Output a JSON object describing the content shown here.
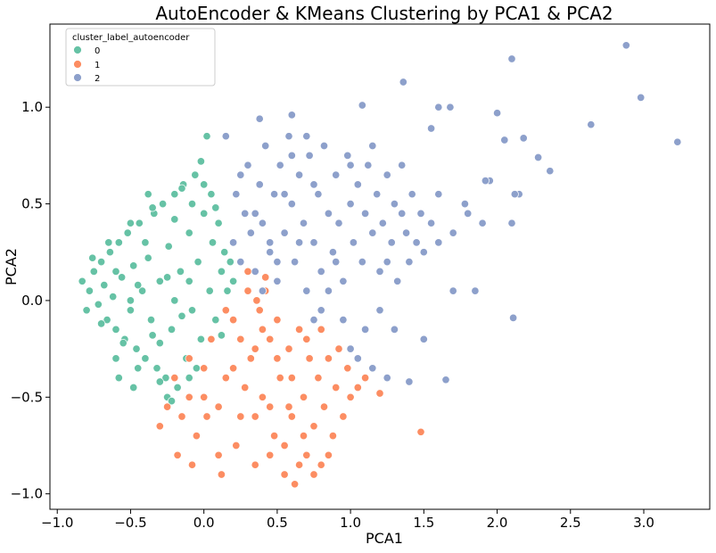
{
  "chart_data": {
    "type": "scatter",
    "title": "AutoEncoder & KMeans Clustering by PCA1 & PCA2",
    "xlabel": "PCA1",
    "ylabel": "PCA2",
    "xlim": [
      -1.05,
      3.45
    ],
    "ylim": [
      -1.08,
      1.43
    ],
    "xticks": [
      -1.0,
      -0.5,
      0.0,
      0.5,
      1.0,
      1.5,
      2.0,
      2.5,
      3.0
    ],
    "xtick_labels": [
      "−1.0",
      "−0.5",
      "0.0",
      "0.5",
      "1.0",
      "1.5",
      "2.0",
      "2.5",
      "3.0"
    ],
    "yticks": [
      -1.0,
      -0.5,
      0.0,
      0.5,
      1.0
    ],
    "ytick_labels": [
      "−1.0",
      "−0.5",
      "0.0",
      "0.5",
      "1.0"
    ],
    "grid": false,
    "legend": {
      "title": "cluster_label_autoencoder",
      "placement": "top-left",
      "entries": [
        "0",
        "1",
        "2"
      ]
    },
    "series": [
      {
        "name": "0",
        "color": "#66c2a5",
        "points": [
          [
            -0.83,
            0.1
          ],
          [
            -0.78,
            0.05
          ],
          [
            -0.75,
            0.15
          ],
          [
            -0.72,
            -0.02
          ],
          [
            -0.7,
            0.2
          ],
          [
            -0.68,
            0.08
          ],
          [
            -0.66,
            -0.1
          ],
          [
            -0.64,
            0.25
          ],
          [
            -0.62,
            0.02
          ],
          [
            -0.6,
            -0.15
          ],
          [
            -0.58,
            0.3
          ],
          [
            -0.56,
            0.12
          ],
          [
            -0.54,
            -0.2
          ],
          [
            -0.52,
            0.35
          ],
          [
            -0.5,
            -0.05
          ],
          [
            -0.48,
            0.18
          ],
          [
            -0.46,
            -0.25
          ],
          [
            -0.44,
            0.4
          ],
          [
            -0.42,
            0.05
          ],
          [
            -0.4,
            -0.3
          ],
          [
            -0.38,
            0.22
          ],
          [
            -0.36,
            -0.1
          ],
          [
            -0.34,
            0.45
          ],
          [
            -0.32,
            -0.35
          ],
          [
            -0.3,
            0.1
          ],
          [
            -0.28,
            0.5
          ],
          [
            -0.26,
            -0.4
          ],
          [
            -0.24,
            0.28
          ],
          [
            -0.22,
            -0.15
          ],
          [
            -0.2,
            0.55
          ],
          [
            -0.18,
            -0.45
          ],
          [
            -0.16,
            0.15
          ],
          [
            -0.14,
            0.6
          ],
          [
            -0.12,
            -0.3
          ],
          [
            -0.1,
            0.35
          ],
          [
            -0.08,
            -0.05
          ],
          [
            -0.06,
            0.65
          ],
          [
            -0.04,
            0.2
          ],
          [
            -0.02,
            -0.2
          ],
          [
            0.0,
            0.45
          ],
          [
            0.02,
            0.85
          ],
          [
            0.04,
            0.05
          ],
          [
            0.06,
            0.3
          ],
          [
            0.08,
            -0.1
          ],
          [
            0.1,
            0.4
          ],
          [
            0.12,
            0.15
          ],
          [
            0.14,
            0.25
          ],
          [
            0.16,
            0.05
          ],
          [
            0.18,
            0.2
          ],
          [
            0.2,
            0.1
          ],
          [
            -0.6,
            -0.3
          ],
          [
            -0.5,
            0.4
          ],
          [
            -0.45,
            -0.35
          ],
          [
            -0.35,
            0.48
          ],
          [
            -0.25,
            -0.5
          ],
          [
            -0.15,
            0.58
          ],
          [
            -0.05,
            -0.35
          ],
          [
            0.05,
            0.55
          ],
          [
            -0.65,
            0.3
          ],
          [
            -0.55,
            -0.22
          ],
          [
            -0.3,
            -0.42
          ],
          [
            -0.2,
            0.42
          ],
          [
            -0.1,
            -0.4
          ],
          [
            0.0,
            0.6
          ],
          [
            -0.7,
            -0.12
          ],
          [
            -0.4,
            0.3
          ],
          [
            -0.3,
            -0.22
          ],
          [
            -0.2,
            0.0
          ],
          [
            -0.1,
            0.1
          ],
          [
            -0.5,
            0.0
          ],
          [
            -0.6,
            0.15
          ],
          [
            -0.45,
            0.08
          ],
          [
            -0.35,
            -0.18
          ],
          [
            -0.25,
            0.12
          ],
          [
            -0.15,
            -0.08
          ],
          [
            -0.8,
            -0.05
          ],
          [
            -0.76,
            0.22
          ],
          [
            -0.58,
            -0.4
          ],
          [
            -0.48,
            -0.45
          ],
          [
            -0.22,
            -0.52
          ],
          [
            -0.02,
            0.72
          ],
          [
            0.08,
            0.48
          ],
          [
            0.12,
            -0.18
          ],
          [
            -0.08,
            0.5
          ],
          [
            -0.38,
            0.55
          ]
        ]
      },
      {
        "name": "1",
        "color": "#fc8d62",
        "points": [
          [
            -0.2,
            -0.4
          ],
          [
            -0.15,
            -0.6
          ],
          [
            -0.1,
            -0.3
          ],
          [
            -0.05,
            -0.7
          ],
          [
            0.0,
            -0.5
          ],
          [
            0.05,
            -0.2
          ],
          [
            0.1,
            -0.8
          ],
          [
            0.15,
            -0.4
          ],
          [
            0.2,
            -0.1
          ],
          [
            0.25,
            -0.6
          ],
          [
            0.3,
            0.15
          ],
          [
            0.32,
            -0.3
          ],
          [
            0.35,
            -0.85
          ],
          [
            0.38,
            -0.05
          ],
          [
            0.4,
            -0.5
          ],
          [
            0.42,
            0.05
          ],
          [
            0.45,
            -0.2
          ],
          [
            0.48,
            -0.7
          ],
          [
            0.5,
            -0.1
          ],
          [
            0.52,
            -0.4
          ],
          [
            0.55,
            -0.9
          ],
          [
            0.58,
            -0.25
          ],
          [
            0.6,
            -0.6
          ],
          [
            0.62,
            -0.95
          ],
          [
            0.65,
            -0.15
          ],
          [
            0.68,
            -0.5
          ],
          [
            0.7,
            -0.8
          ],
          [
            0.72,
            -0.3
          ],
          [
            0.75,
            -0.65
          ],
          [
            0.78,
            -0.4
          ],
          [
            0.8,
            -0.85
          ],
          [
            0.82,
            -0.55
          ],
          [
            0.85,
            -0.3
          ],
          [
            0.88,
            -0.7
          ],
          [
            0.9,
            -0.45
          ],
          [
            0.95,
            -0.6
          ],
          [
            1.0,
            -0.5
          ],
          [
            1.05,
            -0.45
          ],
          [
            1.1,
            -0.4
          ],
          [
            1.2,
            -0.48
          ],
          [
            1.48,
            -0.68
          ],
          [
            -0.3,
            -0.65
          ],
          [
            -0.25,
            -0.55
          ],
          [
            -0.18,
            -0.8
          ],
          [
            -0.08,
            -0.85
          ],
          [
            0.02,
            -0.6
          ],
          [
            0.12,
            -0.9
          ],
          [
            0.22,
            -0.75
          ],
          [
            0.28,
            -0.45
          ],
          [
            0.35,
            -0.25
          ],
          [
            0.45,
            -0.55
          ],
          [
            0.55,
            -0.75
          ],
          [
            0.65,
            -0.85
          ],
          [
            0.75,
            -0.9
          ],
          [
            0.85,
            -0.8
          ],
          [
            0.25,
            -0.2
          ],
          [
            0.15,
            -0.05
          ],
          [
            0.3,
            0.05
          ],
          [
            0.4,
            -0.15
          ],
          [
            0.5,
            -0.3
          ],
          [
            0.6,
            -0.4
          ],
          [
            0.7,
            -0.2
          ],
          [
            0.8,
            -0.15
          ],
          [
            0.2,
            -0.35
          ],
          [
            0.1,
            -0.55
          ],
          [
            0.0,
            -0.35
          ],
          [
            -0.1,
            -0.5
          ],
          [
            0.35,
            -0.6
          ],
          [
            0.45,
            -0.8
          ],
          [
            0.58,
            -0.55
          ],
          [
            0.68,
            -0.7
          ],
          [
            0.92,
            -0.25
          ],
          [
            0.98,
            -0.35
          ],
          [
            0.42,
            0.12
          ],
          [
            0.36,
            0.0
          ]
        ]
      },
      {
        "name": "2",
        "color": "#8da0cb",
        "points": [
          [
            0.2,
            0.3
          ],
          [
            0.22,
            0.55
          ],
          [
            0.25,
            0.2
          ],
          [
            0.28,
            0.45
          ],
          [
            0.3,
            0.7
          ],
          [
            0.32,
            0.35
          ],
          [
            0.35,
            0.15
          ],
          [
            0.38,
            0.6
          ],
          [
            0.4,
            0.4
          ],
          [
            0.42,
            0.8
          ],
          [
            0.45,
            0.25
          ],
          [
            0.48,
            0.55
          ],
          [
            0.5,
            0.1
          ],
          [
            0.52,
            0.7
          ],
          [
            0.55,
            0.35
          ],
          [
            0.58,
            0.85
          ],
          [
            0.6,
            0.5
          ],
          [
            0.62,
            0.2
          ],
          [
            0.65,
            0.65
          ],
          [
            0.68,
            0.4
          ],
          [
            0.7,
            0.05
          ],
          [
            0.72,
            0.75
          ],
          [
            0.75,
            0.3
          ],
          [
            0.78,
            0.55
          ],
          [
            0.8,
            0.15
          ],
          [
            0.82,
            0.8
          ],
          [
            0.85,
            0.45
          ],
          [
            0.88,
            0.25
          ],
          [
            0.9,
            0.65
          ],
          [
            0.92,
            0.4
          ],
          [
            0.95,
            0.1
          ],
          [
            0.98,
            0.75
          ],
          [
            1.0,
            0.5
          ],
          [
            1.02,
            0.3
          ],
          [
            1.05,
            0.6
          ],
          [
            1.08,
            0.2
          ],
          [
            1.1,
            0.45
          ],
          [
            1.12,
            0.7
          ],
          [
            1.15,
            0.35
          ],
          [
            1.18,
            0.55
          ],
          [
            1.2,
            0.15
          ],
          [
            1.22,
            0.4
          ],
          [
            1.25,
            0.65
          ],
          [
            1.28,
            0.3
          ],
          [
            1.3,
            0.5
          ],
          [
            1.32,
            0.1
          ],
          [
            1.35,
            0.7
          ],
          [
            1.38,
            0.35
          ],
          [
            1.4,
            0.2
          ],
          [
            1.42,
            0.55
          ],
          [
            1.45,
            0.3
          ],
          [
            1.48,
            0.45
          ],
          [
            1.5,
            0.25
          ],
          [
            1.55,
            0.4
          ],
          [
            1.6,
            0.3
          ],
          [
            0.85,
            0.05
          ],
          [
            0.95,
            -0.1
          ],
          [
            1.0,
            -0.25
          ],
          [
            1.05,
            -0.3
          ],
          [
            1.15,
            -0.35
          ],
          [
            1.25,
            -0.4
          ],
          [
            1.4,
            -0.42
          ],
          [
            1.65,
            -0.41
          ],
          [
            1.3,
            -0.15
          ],
          [
            1.2,
            -0.05
          ],
          [
            0.75,
            -0.1
          ],
          [
            0.8,
            -0.05
          ],
          [
            1.1,
            -0.15
          ],
          [
            1.5,
            -0.2
          ],
          [
            1.7,
            0.05
          ],
          [
            1.6,
            0.55
          ],
          [
            1.7,
            0.35
          ],
          [
            1.8,
            0.45
          ],
          [
            1.85,
            0.05
          ],
          [
            1.9,
            0.4
          ],
          [
            1.95,
            0.62
          ],
          [
            2.0,
            0.97
          ],
          [
            2.05,
            0.83
          ],
          [
            2.1,
            0.4
          ],
          [
            2.15,
            0.55
          ],
          [
            2.18,
            0.84
          ],
          [
            2.12,
            0.55
          ],
          [
            2.28,
            0.74
          ],
          [
            2.36,
            0.67
          ],
          [
            2.64,
            0.91
          ],
          [
            2.88,
            1.32
          ],
          [
            2.98,
            1.05
          ],
          [
            3.23,
            0.82
          ],
          [
            2.11,
            -0.09
          ],
          [
            2.1,
            1.25
          ],
          [
            1.36,
            1.13
          ],
          [
            1.6,
            1.0
          ],
          [
            1.68,
            1.0
          ],
          [
            1.08,
            1.01
          ],
          [
            0.6,
            0.96
          ],
          [
            0.38,
            0.94
          ],
          [
            0.15,
            0.85
          ],
          [
            1.92,
            0.62
          ],
          [
            1.78,
            0.5
          ],
          [
            1.55,
            0.89
          ],
          [
            0.45,
            0.3
          ],
          [
            0.55,
            0.55
          ],
          [
            0.65,
            0.3
          ],
          [
            0.75,
            0.6
          ],
          [
            0.9,
            0.2
          ],
          [
            1.0,
            0.7
          ],
          [
            0.35,
            0.45
          ],
          [
            0.25,
            0.65
          ],
          [
            0.6,
            0.75
          ],
          [
            0.7,
            0.85
          ],
          [
            1.15,
            0.8
          ],
          [
            1.25,
            0.2
          ],
          [
            1.35,
            0.45
          ],
          [
            0.5,
            0.2
          ],
          [
            0.4,
            0.05
          ]
        ]
      }
    ]
  }
}
